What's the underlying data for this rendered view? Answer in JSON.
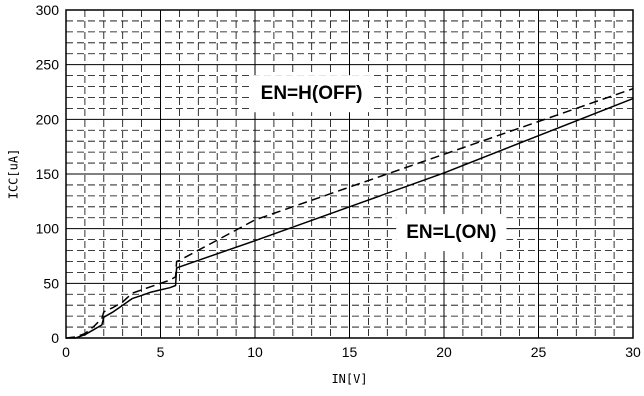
{
  "chart_data": {
    "type": "line",
    "title": "",
    "xlabel": "IN[V]",
    "ylabel": "ICC[uA]",
    "xlim": [
      0,
      30
    ],
    "ylim": [
      0,
      300
    ],
    "xticks": [
      0,
      5,
      10,
      15,
      20,
      25,
      30
    ],
    "yticks": [
      0,
      50,
      100,
      150,
      200,
      250,
      300
    ],
    "grid": true,
    "legend": "none",
    "series": [
      {
        "name": "EN=H(OFF)",
        "style": "dashed",
        "color": "#000000",
        "x": [
          0.0,
          0.5,
          1.0,
          1.5,
          1.9,
          2.0,
          2.5,
          3.0,
          3.5,
          4.0,
          4.5,
          5.0,
          5.5,
          5.8,
          5.85,
          6.0,
          10.0,
          15.0,
          20.0,
          25.0,
          30.0
        ],
        "y": [
          0,
          1,
          4,
          11,
          18,
          24,
          28,
          33,
          41,
          44,
          47,
          50,
          53,
          56,
          70,
          71,
          108,
          138,
          168,
          198,
          228
        ]
      },
      {
        "name": "EN=L(ON)",
        "style": "solid",
        "color": "#000000",
        "x": [
          0.0,
          0.5,
          1.0,
          1.5,
          1.9,
          2.0,
          2.5,
          3.0,
          3.5,
          4.0,
          4.5,
          5.0,
          5.5,
          5.8,
          5.85,
          6.0,
          10.0,
          15.0,
          20.0,
          25.0,
          30.0
        ],
        "y": [
          0,
          0,
          3,
          8,
          12,
          19,
          24,
          30,
          36,
          39,
          42,
          44,
          46,
          48,
          64,
          65,
          89,
          120,
          151,
          185,
          219
        ]
      }
    ],
    "annotations": [
      {
        "text": "EN=H(OFF)",
        "x": 10.3,
        "y": 223
      },
      {
        "text": "EN=L(ON)",
        "x": 18.0,
        "y": 96
      }
    ]
  }
}
